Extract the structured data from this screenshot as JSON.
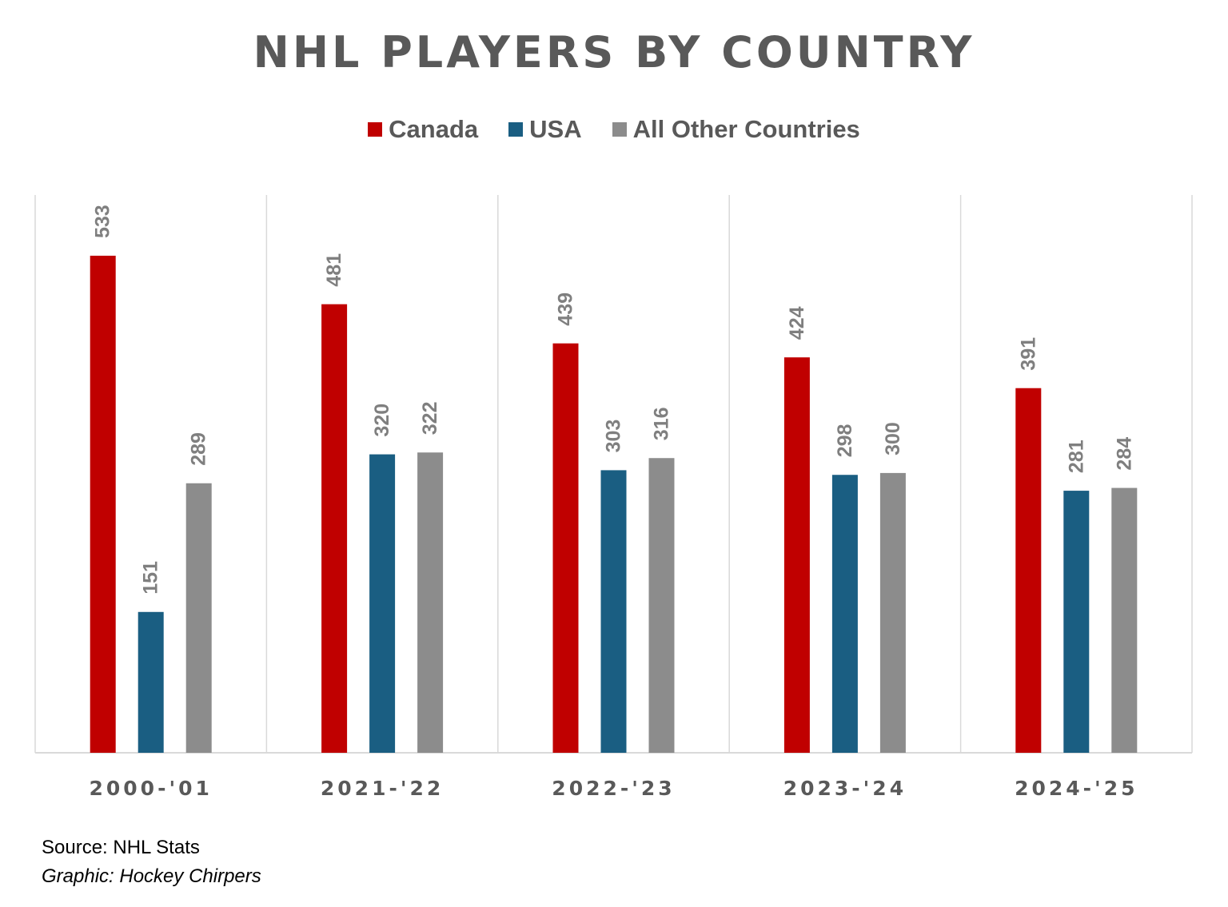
{
  "chart_data": {
    "type": "bar",
    "title": "NHL PLAYERS BY COUNTRY",
    "categories": [
      "2000-'01",
      "2021-'22",
      "2022-'23",
      "2023-'24",
      "2024-'25"
    ],
    "series": [
      {
        "name": "Canada",
        "color": "#c00000",
        "values": [
          533,
          481,
          439,
          424,
          391
        ]
      },
      {
        "name": "USA",
        "color": "#1a5e82",
        "values": [
          151,
          320,
          303,
          298,
          281
        ]
      },
      {
        "name": "All Other Countries",
        "color": "#8c8c8c",
        "values": [
          289,
          322,
          316,
          300,
          284
        ]
      }
    ],
    "xlabel": "",
    "ylabel": "",
    "ylim": [
      0,
      600
    ],
    "legend": "top-center",
    "grid": "vertical category separators",
    "data_labels": "rotated above bars"
  },
  "footer": {
    "source": "Source: NHL Stats",
    "credit": "Graphic: Hockey Chirpers"
  }
}
